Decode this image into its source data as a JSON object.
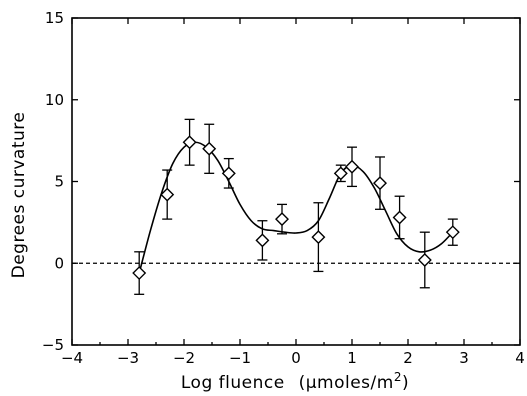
{
  "chart_data": {
    "type": "scatter",
    "xlabel": "Log fluence",
    "xlabel_units": "(μmoles/m",
    "xlabel_units_sup": "2",
    "xlabel_units_close": ")",
    "ylabel": "Degrees curvature",
    "xlim": [
      -4,
      4
    ],
    "ylim": [
      -5,
      15
    ],
    "x_ticks": [
      -4,
      -3,
      -2,
      -1,
      0,
      1,
      2,
      3,
      4
    ],
    "x_tick_labels": [
      "−4",
      "−3",
      "−2",
      "−1",
      "0",
      "1",
      "2",
      "3",
      "4"
    ],
    "y_ticks": [
      -5,
      0,
      5,
      10,
      15
    ],
    "y_tick_labels": [
      "−5",
      "0",
      "5",
      "10",
      "15"
    ],
    "reference_line_y": 0,
    "grid": false,
    "points": [
      {
        "x": -2.8,
        "y": -0.6,
        "err": 1.3
      },
      {
        "x": -2.3,
        "y": 4.2,
        "err": 1.5
      },
      {
        "x": -1.9,
        "y": 7.4,
        "err": 1.4
      },
      {
        "x": -1.55,
        "y": 7.0,
        "err": 1.5
      },
      {
        "x": -1.2,
        "y": 5.5,
        "err": 0.9
      },
      {
        "x": -0.6,
        "y": 1.4,
        "err": 1.2
      },
      {
        "x": -0.25,
        "y": 2.7,
        "err": 0.9
      },
      {
        "x": 0.4,
        "y": 1.6,
        "err": 2.1
      },
      {
        "x": 0.8,
        "y": 5.5,
        "err": 0.5
      },
      {
        "x": 1.0,
        "y": 5.9,
        "err": 1.2
      },
      {
        "x": 1.5,
        "y": 4.9,
        "err": 1.6
      },
      {
        "x": 1.85,
        "y": 2.8,
        "err": 1.3
      },
      {
        "x": 2.3,
        "y": 0.2,
        "err": 1.7
      },
      {
        "x": 2.8,
        "y": 1.9,
        "err": 0.8
      }
    ],
    "fit_curve": {
      "x": [
        -2.8,
        -2.6,
        -2.4,
        -2.2,
        -2.0,
        -1.8,
        -1.6,
        -1.4,
        -1.2,
        -1.0,
        -0.8,
        -0.6,
        -0.4,
        -0.2,
        0.0,
        0.2,
        0.4,
        0.6,
        0.8,
        1.0,
        1.2,
        1.4,
        1.6,
        1.8,
        2.0,
        2.2,
        2.4,
        2.6,
        2.8
      ],
      "y": [
        -0.6,
        2.0,
        4.3,
        6.1,
        7.1,
        7.4,
        7.1,
        6.3,
        5.0,
        3.6,
        2.6,
        2.1,
        2.0,
        1.9,
        1.85,
        2.0,
        2.6,
        4.0,
        5.5,
        6.0,
        5.6,
        4.6,
        3.2,
        1.8,
        1.0,
        0.7,
        0.8,
        1.2,
        1.9
      ]
    }
  }
}
